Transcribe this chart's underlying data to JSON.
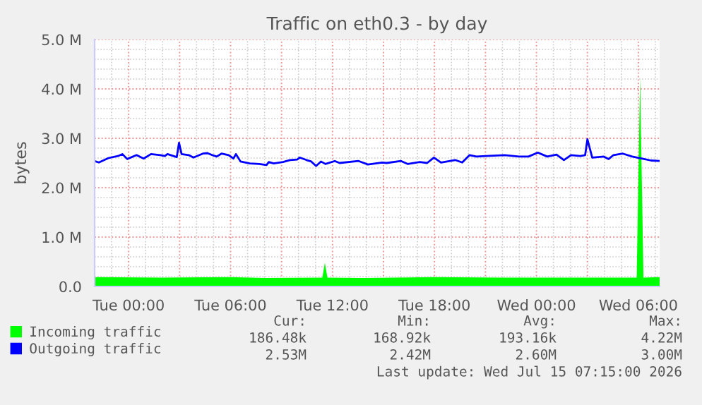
{
  "chart_data": {
    "type": "area",
    "title": "Traffic on eth0.3 - by day",
    "ylabel": "bytes",
    "xlim": [
      "2026-07-13T22:00",
      "2026-07-15T07:15"
    ],
    "ylim": [
      0,
      5
    ],
    "xticks": [
      {
        "value": "2026-07-14T00:00",
        "label": "Tue 00:00"
      },
      {
        "value": "2026-07-14T03:00",
        "label": null
      },
      {
        "value": "2026-07-14T06:00",
        "label": "Tue 06:00"
      },
      {
        "value": "2026-07-14T09:00",
        "label": null
      },
      {
        "value": "2026-07-14T12:00",
        "label": "Tue 12:00"
      },
      {
        "value": "2026-07-14T15:00",
        "label": null
      },
      {
        "value": "2026-07-14T18:00",
        "label": "Tue 18:00"
      },
      {
        "value": "2026-07-14T21:00",
        "label": null
      },
      {
        "value": "2026-07-15T00:00",
        "label": "Wed 00:00"
      },
      {
        "value": "2026-07-15T03:00",
        "label": null
      },
      {
        "value": "2026-07-15T06:00",
        "label": "Wed 06:00"
      }
    ],
    "yticks": [
      {
        "value": 0,
        "label": "0.0"
      },
      {
        "value": 1,
        "label": "1.0 M"
      },
      {
        "value": 2,
        "label": "2.0 M"
      },
      {
        "value": 3,
        "label": "3.0 M"
      },
      {
        "value": 4,
        "label": "4.0 M"
      },
      {
        "value": 5,
        "label": "5.0 M"
      }
    ],
    "grid": true,
    "legend": "bottom",
    "series": [
      {
        "name": "Incoming traffic",
        "color": "#00ff00",
        "x": [
          "2026-07-13T22:00",
          "2026-07-14T02:00",
          "2026-07-14T06:00",
          "2026-07-14T08:00",
          "2026-07-14T11:24",
          "2026-07-14T11:33",
          "2026-07-14T11:42",
          "2026-07-14T14:00",
          "2026-07-14T18:00",
          "2026-07-14T22:00",
          "2026-07-15T02:00",
          "2026-07-15T05:54",
          "2026-07-15T06:06",
          "2026-07-15T06:18",
          "2026-07-15T07:15"
        ],
        "values": [
          0.19,
          0.18,
          0.19,
          0.17,
          0.18,
          0.48,
          0.18,
          0.17,
          0.19,
          0.18,
          0.18,
          0.18,
          4.22,
          0.18,
          0.19
        ]
      },
      {
        "name": "Outgoing traffic",
        "color": "#0000ff",
        "type": "line",
        "x": [
          "2026-07-13T22:00",
          "2026-07-13T22:15",
          "2026-07-13T22:49",
          "2026-07-13T23:22",
          "2026-07-13T23:38",
          "2026-07-13T23:55",
          "2026-07-14T00:28",
          "2026-07-14T00:53",
          "2026-07-14T01:19",
          "2026-07-14T01:52",
          "2026-07-14T02:08",
          "2026-07-14T02:17",
          "2026-07-14T02:50",
          "2026-07-14T02:58",
          "2026-07-14T03:07",
          "2026-07-14T03:32",
          "2026-07-14T03:49",
          "2026-07-14T04:22",
          "2026-07-14T04:38",
          "2026-07-14T04:55",
          "2026-07-14T05:11",
          "2026-07-14T05:28",
          "2026-07-14T05:53",
          "2026-07-14T06:10",
          "2026-07-14T06:19",
          "2026-07-14T06:35",
          "2026-07-14T07:08",
          "2026-07-14T07:41",
          "2026-07-14T08:07",
          "2026-07-14T08:15",
          "2026-07-14T08:32",
          "2026-07-14T09:05",
          "2026-07-14T09:30",
          "2026-07-14T09:55",
          "2026-07-14T10:04",
          "2026-07-14T10:28",
          "2026-07-14T10:45",
          "2026-07-14T11:02",
          "2026-07-14T11:19",
          "2026-07-14T11:35",
          "2026-07-14T12:08",
          "2026-07-14T12:25",
          "2026-07-14T13:32",
          "2026-07-14T14:05",
          "2026-07-14T14:55",
          "2026-07-14T15:11",
          "2026-07-14T16:02",
          "2026-07-14T16:26",
          "2026-07-14T17:08",
          "2026-07-14T17:34",
          "2026-07-14T17:58",
          "2026-07-14T18:23",
          "2026-07-14T19:13",
          "2026-07-14T19:38",
          "2026-07-14T20:04",
          "2026-07-14T20:28",
          "2026-07-14T21:02",
          "2026-07-14T22:08",
          "2026-07-14T22:58",
          "2026-07-14T23:32",
          "2026-07-15T00:05",
          "2026-07-15T00:38",
          "2026-07-15T01:11",
          "2026-07-15T01:37",
          "2026-07-15T02:02",
          "2026-07-15T02:35",
          "2026-07-15T02:52",
          "2026-07-15T03:00",
          "2026-07-15T03:17",
          "2026-07-15T03:58",
          "2026-07-15T04:15",
          "2026-07-15T04:32",
          "2026-07-15T05:05",
          "2026-07-15T05:38",
          "2026-07-15T06:11",
          "2026-07-15T06:45",
          "2026-07-15T07:15"
        ],
        "values": [
          2.54,
          2.51,
          2.6,
          2.64,
          2.68,
          2.58,
          2.66,
          2.59,
          2.68,
          2.66,
          2.64,
          2.68,
          2.62,
          2.91,
          2.68,
          2.66,
          2.61,
          2.69,
          2.7,
          2.66,
          2.63,
          2.69,
          2.66,
          2.59,
          2.68,
          2.53,
          2.49,
          2.48,
          2.46,
          2.52,
          2.49,
          2.52,
          2.56,
          2.57,
          2.61,
          2.56,
          2.53,
          2.44,
          2.53,
          2.48,
          2.54,
          2.5,
          2.54,
          2.47,
          2.51,
          2.5,
          2.54,
          2.48,
          2.52,
          2.5,
          2.61,
          2.51,
          2.56,
          2.51,
          2.66,
          2.63,
          2.64,
          2.66,
          2.63,
          2.63,
          2.71,
          2.63,
          2.67,
          2.56,
          2.66,
          2.64,
          2.66,
          2.98,
          2.61,
          2.63,
          2.58,
          2.66,
          2.69,
          2.63,
          2.59,
          2.55,
          2.54
        ]
      }
    ],
    "annotations": [
      "Cur:",
      "Min:",
      "Avg:",
      "Max:",
      "186.48k",
      "168.92k",
      "193.16k",
      "4.22M",
      "2.53M",
      "2.42M",
      "2.60M",
      "3.00M",
      "Last update: Wed Jul 15 07:15:00 2026"
    ]
  }
}
